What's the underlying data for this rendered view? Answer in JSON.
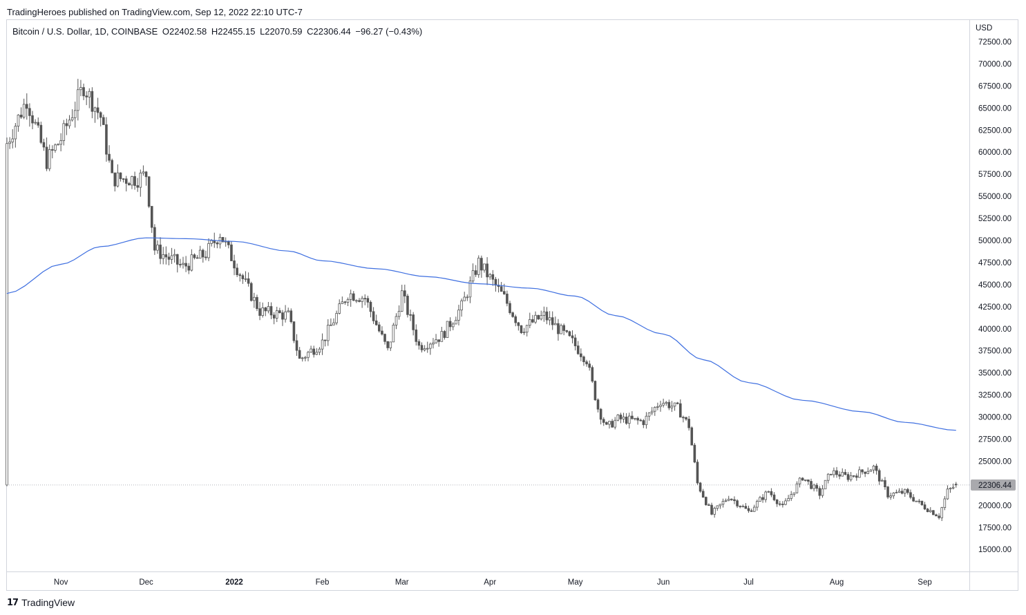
{
  "header": {
    "publisher_text": "TradingHeroes published on TradingView.com, Sep 12, 2022 22:10 UTC-7"
  },
  "legend": {
    "symbol": "Bitcoin / U.S. Dollar, 1D, COINBASE",
    "open": "O22402.58",
    "high": "H22455.15",
    "low": "L22070.59",
    "close": "C22306.44",
    "change": "−96.27 (−0.43%)"
  },
  "footer": {
    "brand": "TradingView",
    "brand_icon": "tradingview-logo-icon"
  },
  "colors": {
    "candle": "#545454",
    "ma_line": "#3d6ee0",
    "price_tag_bg": "#a9a9ad",
    "border": "#d1d4dc"
  },
  "chart_data": {
    "type": "candlestick",
    "title": "Bitcoin / U.S. Dollar, 1D, COINBASE",
    "currency_label": "USD",
    "current_price": "22306.44",
    "y_ticks": [
      "72500.00",
      "70000.00",
      "67500.00",
      "65000.00",
      "62500.00",
      "60000.00",
      "57500.00",
      "55000.00",
      "52500.00",
      "50000.00",
      "47500.00",
      "45000.00",
      "42500.00",
      "40000.00",
      "37500.00",
      "35000.00",
      "32500.00",
      "30000.00",
      "27500.00",
      "25000.00",
      "22500.00",
      "20000.00",
      "17500.00",
      "15000.00"
    ],
    "ylim": [
      12500,
      75000
    ],
    "x_range": [
      "2021-10-13",
      "2022-09-14"
    ],
    "x_ticks": [
      {
        "label": "Nov",
        "date": "2021-11-01"
      },
      {
        "label": "Dec",
        "date": "2021-12-01"
      },
      {
        "label": "2022",
        "date": "2022-01-01",
        "bold": true
      },
      {
        "label": "Feb",
        "date": "2022-02-01"
      },
      {
        "label": "Mar",
        "date": "2022-03-01"
      },
      {
        "label": "Apr",
        "date": "2022-04-01"
      },
      {
        "label": "May",
        "date": "2022-05-01"
      },
      {
        "label": "Jun",
        "date": "2022-06-01"
      },
      {
        "label": "Jul",
        "date": "2022-07-01"
      },
      {
        "label": "Aug",
        "date": "2022-08-01"
      },
      {
        "label": "Sep",
        "date": "2022-09-01"
      }
    ],
    "close_keypoints": [
      {
        "date": "2021-10-13",
        "close": 61000
      },
      {
        "date": "2021-10-20",
        "close": 66000
      },
      {
        "date": "2021-10-27",
        "close": 59000
      },
      {
        "date": "2021-11-01",
        "close": 61500
      },
      {
        "date": "2021-11-09",
        "close": 67500
      },
      {
        "date": "2021-11-15",
        "close": 64000
      },
      {
        "date": "2021-11-19",
        "close": 57000
      },
      {
        "date": "2021-11-28",
        "close": 57000
      },
      {
        "date": "2021-12-01",
        "close": 57500
      },
      {
        "date": "2021-12-04",
        "close": 49000
      },
      {
        "date": "2021-12-14",
        "close": 47000
      },
      {
        "date": "2021-12-22",
        "close": 48500
      },
      {
        "date": "2021-12-27",
        "close": 50800
      },
      {
        "date": "2022-01-01",
        "close": 47500
      },
      {
        "date": "2022-01-10",
        "close": 42000
      },
      {
        "date": "2022-01-20",
        "close": 41500
      },
      {
        "date": "2022-01-24",
        "close": 36500
      },
      {
        "date": "2022-02-01",
        "close": 38500
      },
      {
        "date": "2022-02-10",
        "close": 44000
      },
      {
        "date": "2022-02-16",
        "close": 43500
      },
      {
        "date": "2022-02-24",
        "close": 37500
      },
      {
        "date": "2022-03-01",
        "close": 44000
      },
      {
        "date": "2022-03-07",
        "close": 38000
      },
      {
        "date": "2022-03-15",
        "close": 39200
      },
      {
        "date": "2022-03-22",
        "close": 42500
      },
      {
        "date": "2022-03-28",
        "close": 47500
      },
      {
        "date": "2022-04-06",
        "close": 43500
      },
      {
        "date": "2022-04-12",
        "close": 40000
      },
      {
        "date": "2022-04-20",
        "close": 41500
      },
      {
        "date": "2022-04-30",
        "close": 38500
      },
      {
        "date": "2022-05-05",
        "close": 36500
      },
      {
        "date": "2022-05-09",
        "close": 31000
      },
      {
        "date": "2022-05-12",
        "close": 28800
      },
      {
        "date": "2022-05-16",
        "close": 29800
      },
      {
        "date": "2022-05-25",
        "close": 29500
      },
      {
        "date": "2022-05-31",
        "close": 31800
      },
      {
        "date": "2022-06-06",
        "close": 31000
      },
      {
        "date": "2022-06-10",
        "close": 29000
      },
      {
        "date": "2022-06-13",
        "close": 22500
      },
      {
        "date": "2022-06-18",
        "close": 19000
      },
      {
        "date": "2022-06-24",
        "close": 21000
      },
      {
        "date": "2022-07-01",
        "close": 19300
      },
      {
        "date": "2022-07-08",
        "close": 21600
      },
      {
        "date": "2022-07-13",
        "close": 19800
      },
      {
        "date": "2022-07-20",
        "close": 23200
      },
      {
        "date": "2022-07-26",
        "close": 21300
      },
      {
        "date": "2022-07-30",
        "close": 23800
      },
      {
        "date": "2022-08-05",
        "close": 23200
      },
      {
        "date": "2022-08-14",
        "close": 24300
      },
      {
        "date": "2022-08-19",
        "close": 21200
      },
      {
        "date": "2022-08-25",
        "close": 21500
      },
      {
        "date": "2022-08-31",
        "close": 20000
      },
      {
        "date": "2022-09-06",
        "close": 18800
      },
      {
        "date": "2022-09-09",
        "close": 21600
      },
      {
        "date": "2022-09-12",
        "close": 22306
      }
    ],
    "moving_average": {
      "points": [
        {
          "date": "2021-10-13",
          "value": 44000
        },
        {
          "date": "2021-11-01",
          "value": 47300
        },
        {
          "date": "2021-11-15",
          "value": 49300
        },
        {
          "date": "2021-12-01",
          "value": 50300
        },
        {
          "date": "2021-12-15",
          "value": 50200
        },
        {
          "date": "2022-01-01",
          "value": 49900
        },
        {
          "date": "2022-01-20",
          "value": 48800
        },
        {
          "date": "2022-02-01",
          "value": 47700
        },
        {
          "date": "2022-02-20",
          "value": 46800
        },
        {
          "date": "2022-03-10",
          "value": 45900
        },
        {
          "date": "2022-03-28",
          "value": 45100
        },
        {
          "date": "2022-04-15",
          "value": 44600
        },
        {
          "date": "2022-05-01",
          "value": 43700
        },
        {
          "date": "2022-05-15",
          "value": 41500
        },
        {
          "date": "2022-06-01",
          "value": 39400
        },
        {
          "date": "2022-06-15",
          "value": 36500
        },
        {
          "date": "2022-07-01",
          "value": 33900
        },
        {
          "date": "2022-07-20",
          "value": 31900
        },
        {
          "date": "2022-08-10",
          "value": 30600
        },
        {
          "date": "2022-08-25",
          "value": 29400
        },
        {
          "date": "2022-09-12",
          "value": 28500
        }
      ]
    }
  }
}
